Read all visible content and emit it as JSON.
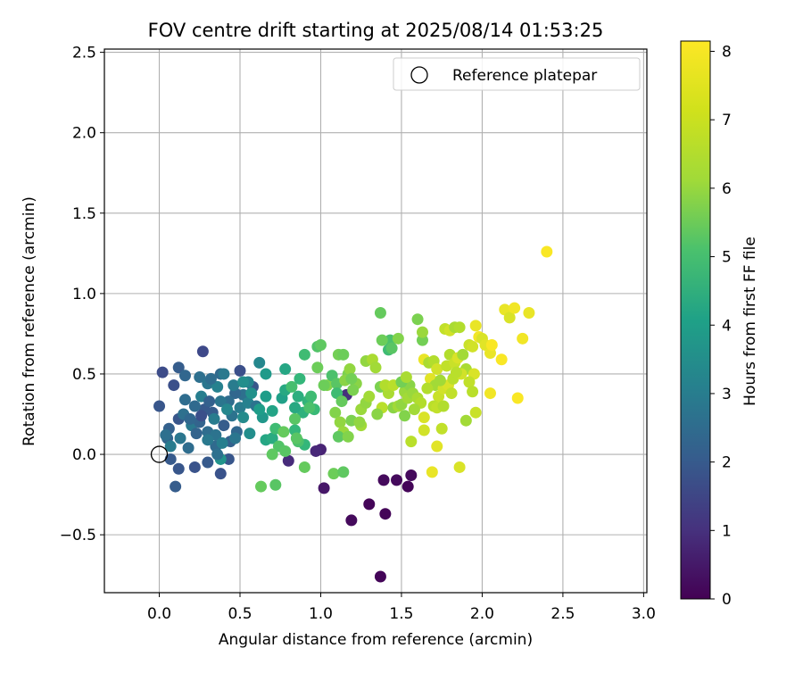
{
  "chart_data": {
    "type": "scatter",
    "title": "FOV centre drift starting at 2025/08/14 01:53:25",
    "xlabel": "Angular distance from reference (arcmin)",
    "ylabel": "Rotation from reference (arcmin)",
    "xlim": [
      -0.34,
      3.02
    ],
    "ylim": [
      -0.86,
      2.52
    ],
    "xticks": [
      0.0,
      0.5,
      1.0,
      1.5,
      2.0,
      2.5,
      3.0
    ],
    "xtick_labels": [
      "0.0",
      "0.5",
      "1.0",
      "1.5",
      "2.0",
      "2.5",
      "3.0"
    ],
    "yticks": [
      -0.5,
      0.0,
      0.5,
      1.0,
      1.5,
      2.0,
      2.5
    ],
    "ytick_labels": [
      "−0.5",
      "0.0",
      "0.5",
      "1.0",
      "1.5",
      "2.0",
      "2.5"
    ],
    "grid": true,
    "colormap": "viridis",
    "colorbar": {
      "label": "Hours from first FF file",
      "range": [
        0,
        8.15
      ],
      "ticks": [
        0,
        1,
        2,
        3,
        4,
        5,
        6,
        7,
        8
      ],
      "tick_labels": [
        "0",
        "1",
        "2",
        "3",
        "4",
        "5",
        "6",
        "7",
        "8"
      ]
    },
    "legend": {
      "position": "top-right",
      "label": "Reference platepar"
    },
    "reference_point": {
      "x": 0.0,
      "y": 0.0
    },
    "points": [
      {
        "x": 1.37,
        "y": -0.76,
        "c": 0.1
      },
      {
        "x": 1.4,
        "y": -0.37,
        "c": 0.1
      },
      {
        "x": 1.19,
        "y": -0.41,
        "c": 0.2
      },
      {
        "x": 1.3,
        "y": -0.31,
        "c": 0.1
      },
      {
        "x": 1.47,
        "y": -0.16,
        "c": 0.2
      },
      {
        "x": 1.56,
        "y": -0.13,
        "c": 0.2
      },
      {
        "x": 1.54,
        "y": -0.2,
        "c": 0.1
      },
      {
        "x": 1.39,
        "y": -0.16,
        "c": 0.2
      },
      {
        "x": 1.02,
        "y": -0.21,
        "c": 0.5
      },
      {
        "x": 1.0,
        "y": 0.03,
        "c": 0.8
      },
      {
        "x": 0.97,
        "y": 0.02,
        "c": 0.9
      },
      {
        "x": 0.8,
        "y": -0.04,
        "c": 1.0
      },
      {
        "x": 1.16,
        "y": 0.37,
        "c": 1.1
      },
      {
        "x": 0.02,
        "y": 0.51,
        "c": 1.9
      },
      {
        "x": 0.0,
        "y": 0.3,
        "c": 2.2
      },
      {
        "x": 0.06,
        "y": 0.16,
        "c": 2.5
      },
      {
        "x": 0.05,
        "y": 0.1,
        "c": 2.6
      },
      {
        "x": 0.1,
        "y": -0.2,
        "c": 2.4
      },
      {
        "x": 0.07,
        "y": -0.03,
        "c": 2.3
      },
      {
        "x": 0.12,
        "y": -0.09,
        "c": 2.2
      },
      {
        "x": 0.22,
        "y": -0.08,
        "c": 2.1
      },
      {
        "x": 0.3,
        "y": -0.05,
        "c": 2.3
      },
      {
        "x": 0.38,
        "y": -0.12,
        "c": 2.1
      },
      {
        "x": 0.43,
        "y": -0.03,
        "c": 2.2
      },
      {
        "x": 0.09,
        "y": 0.43,
        "c": 2.0
      },
      {
        "x": 0.12,
        "y": 0.54,
        "c": 2.4
      },
      {
        "x": 0.16,
        "y": 0.49,
        "c": 2.7
      },
      {
        "x": 0.27,
        "y": 0.64,
        "c": 1.8
      },
      {
        "x": 0.25,
        "y": 0.48,
        "c": 3.0
      },
      {
        "x": 0.3,
        "y": 0.44,
        "c": 3.2
      },
      {
        "x": 0.38,
        "y": 0.5,
        "c": 2.8
      },
      {
        "x": 0.4,
        "y": 0.5,
        "c": 3.3
      },
      {
        "x": 0.5,
        "y": 0.52,
        "c": 2.0
      },
      {
        "x": 0.58,
        "y": 0.42,
        "c": 2.2
      },
      {
        "x": 0.62,
        "y": 0.57,
        "c": 3.8
      },
      {
        "x": 0.66,
        "y": 0.5,
        "c": 4.4
      },
      {
        "x": 0.55,
        "y": 0.45,
        "c": 3.7
      },
      {
        "x": 0.52,
        "y": 0.37,
        "c": 3.0
      },
      {
        "x": 0.47,
        "y": 0.38,
        "c": 2.7
      },
      {
        "x": 0.43,
        "y": 0.33,
        "c": 2.9
      },
      {
        "x": 0.38,
        "y": 0.33,
        "c": 3.2
      },
      {
        "x": 0.33,
        "y": 0.26,
        "c": 2.4
      },
      {
        "x": 0.28,
        "y": 0.28,
        "c": 2.3
      },
      {
        "x": 0.22,
        "y": 0.3,
        "c": 2.8
      },
      {
        "x": 0.16,
        "y": 0.34,
        "c": 2.9
      },
      {
        "x": 0.12,
        "y": 0.22,
        "c": 2.2
      },
      {
        "x": 0.15,
        "y": 0.25,
        "c": 3.0
      },
      {
        "x": 0.2,
        "y": 0.18,
        "c": 3.3
      },
      {
        "x": 0.25,
        "y": 0.2,
        "c": 2.6
      },
      {
        "x": 0.3,
        "y": 0.14,
        "c": 2.9
      },
      {
        "x": 0.35,
        "y": 0.12,
        "c": 3.1
      },
      {
        "x": 0.4,
        "y": 0.18,
        "c": 2.4
      },
      {
        "x": 0.45,
        "y": 0.24,
        "c": 3.1
      },
      {
        "x": 0.5,
        "y": 0.29,
        "c": 3.4
      },
      {
        "x": 0.55,
        "y": 0.32,
        "c": 3.6
      },
      {
        "x": 0.6,
        "y": 0.3,
        "c": 3.1
      },
      {
        "x": 0.48,
        "y": 0.14,
        "c": 2.7
      },
      {
        "x": 0.44,
        "y": 0.08,
        "c": 2.5
      },
      {
        "x": 0.35,
        "y": 0.05,
        "c": 2.8
      },
      {
        "x": 0.3,
        "y": 0.09,
        "c": 3.3
      },
      {
        "x": 0.23,
        "y": 0.13,
        "c": 2.6
      },
      {
        "x": 0.18,
        "y": 0.04,
        "c": 2.9
      },
      {
        "x": 0.13,
        "y": 0.1,
        "c": 3.2
      },
      {
        "x": 0.07,
        "y": 0.05,
        "c": 3.4
      },
      {
        "x": 0.04,
        "y": 0.12,
        "c": 3.0
      },
      {
        "x": 0.26,
        "y": 0.36,
        "c": 3.5
      },
      {
        "x": 0.36,
        "y": 0.42,
        "c": 3.6
      },
      {
        "x": 0.42,
        "y": 0.28,
        "c": 3.8
      },
      {
        "x": 0.52,
        "y": 0.23,
        "c": 3.9
      },
      {
        "x": 0.56,
        "y": 0.13,
        "c": 4.0
      },
      {
        "x": 0.38,
        "y": -0.03,
        "c": 4.2
      },
      {
        "x": 0.64,
        "y": 0.23,
        "c": 4.3
      },
      {
        "x": 0.66,
        "y": 0.36,
        "c": 4.5
      },
      {
        "x": 0.7,
        "y": 0.27,
        "c": 4.7
      },
      {
        "x": 0.66,
        "y": 0.09,
        "c": 4.8
      },
      {
        "x": 0.7,
        "y": 0.1,
        "c": 5.0
      },
      {
        "x": 0.76,
        "y": 0.35,
        "c": 4.6
      },
      {
        "x": 0.78,
        "y": 0.4,
        "c": 4.9
      },
      {
        "x": 0.86,
        "y": 0.36,
        "c": 5.1
      },
      {
        "x": 0.78,
        "y": 0.53,
        "c": 4.8
      },
      {
        "x": 0.92,
        "y": 0.33,
        "c": 5.3
      },
      {
        "x": 0.89,
        "y": 0.26,
        "c": 5.2
      },
      {
        "x": 0.96,
        "y": 0.28,
        "c": 5.5
      },
      {
        "x": 0.9,
        "y": 0.06,
        "c": 5.4
      },
      {
        "x": 0.72,
        "y": 0.16,
        "c": 5.6
      },
      {
        "x": 0.84,
        "y": 0.15,
        "c": 5.4
      },
      {
        "x": 0.86,
        "y": 0.08,
        "c": 5.8
      },
      {
        "x": 0.74,
        "y": 0.05,
        "c": 5.9
      },
      {
        "x": 0.78,
        "y": 0.02,
        "c": 6.0
      },
      {
        "x": 0.7,
        "y": 0.0,
        "c": 6.1
      },
      {
        "x": 0.63,
        "y": -0.2,
        "c": 6.2
      },
      {
        "x": 0.72,
        "y": -0.19,
        "c": 6.0
      },
      {
        "x": 0.9,
        "y": -0.08,
        "c": 6.2
      },
      {
        "x": 1.08,
        "y": -0.12,
        "c": 6.3
      },
      {
        "x": 1.14,
        "y": -0.11,
        "c": 6.1
      },
      {
        "x": 0.94,
        "y": 0.36,
        "c": 5.6
      },
      {
        "x": 0.9,
        "y": 0.62,
        "c": 5.6
      },
      {
        "x": 0.98,
        "y": 0.67,
        "c": 5.9
      },
      {
        "x": 1.0,
        "y": 0.68,
        "c": 6.1
      },
      {
        "x": 0.98,
        "y": 0.54,
        "c": 6.3
      },
      {
        "x": 1.04,
        "y": 0.43,
        "c": 6.6
      },
      {
        "x": 1.07,
        "y": 0.49,
        "c": 5.8
      },
      {
        "x": 1.1,
        "y": 0.44,
        "c": 6.0
      },
      {
        "x": 1.11,
        "y": 0.62,
        "c": 6.4
      },
      {
        "x": 1.14,
        "y": 0.62,
        "c": 6.3
      },
      {
        "x": 1.17,
        "y": 0.5,
        "c": 6.5
      },
      {
        "x": 1.18,
        "y": 0.53,
        "c": 6.8
      },
      {
        "x": 1.15,
        "y": 0.46,
        "c": 6.7
      },
      {
        "x": 1.1,
        "y": 0.38,
        "c": 5.6
      },
      {
        "x": 1.13,
        "y": 0.33,
        "c": 6.2
      },
      {
        "x": 1.09,
        "y": 0.26,
        "c": 6.6
      },
      {
        "x": 1.12,
        "y": 0.2,
        "c": 6.8
      },
      {
        "x": 1.14,
        "y": 0.14,
        "c": 6.9
      },
      {
        "x": 1.11,
        "y": 0.11,
        "c": 6.1
      },
      {
        "x": 1.19,
        "y": 0.21,
        "c": 6.5
      },
      {
        "x": 1.22,
        "y": 0.44,
        "c": 6.7
      },
      {
        "x": 1.25,
        "y": 0.28,
        "c": 6.9
      },
      {
        "x": 1.25,
        "y": 0.18,
        "c": 7.0
      },
      {
        "x": 1.28,
        "y": 0.32,
        "c": 6.8
      },
      {
        "x": 1.3,
        "y": 0.36,
        "c": 7.0
      },
      {
        "x": 1.28,
        "y": 0.58,
        "c": 6.8
      },
      {
        "x": 1.32,
        "y": 0.59,
        "c": 7.1
      },
      {
        "x": 1.34,
        "y": 0.54,
        "c": 7.0
      },
      {
        "x": 1.37,
        "y": 0.42,
        "c": 6.5
      },
      {
        "x": 1.42,
        "y": 0.38,
        "c": 7.1
      },
      {
        "x": 1.4,
        "y": 0.43,
        "c": 7.2
      },
      {
        "x": 1.45,
        "y": 0.43,
        "c": 7.3
      },
      {
        "x": 1.38,
        "y": 0.29,
        "c": 7.3
      },
      {
        "x": 1.45,
        "y": 0.29,
        "c": 6.7
      },
      {
        "x": 1.48,
        "y": 0.3,
        "c": 7.0
      },
      {
        "x": 1.5,
        "y": 0.31,
        "c": 6.8
      },
      {
        "x": 1.52,
        "y": 0.39,
        "c": 6.9
      },
      {
        "x": 1.54,
        "y": 0.35,
        "c": 7.0
      },
      {
        "x": 1.55,
        "y": 0.43,
        "c": 6.7
      },
      {
        "x": 1.57,
        "y": 0.38,
        "c": 6.9
      },
      {
        "x": 1.6,
        "y": 0.35,
        "c": 7.1
      },
      {
        "x": 1.62,
        "y": 0.32,
        "c": 7.2
      },
      {
        "x": 1.6,
        "y": 0.84,
        "c": 6.5
      },
      {
        "x": 1.63,
        "y": 0.71,
        "c": 6.4
      },
      {
        "x": 1.63,
        "y": 0.76,
        "c": 6.9
      },
      {
        "x": 1.37,
        "y": 0.88,
        "c": 6.2
      },
      {
        "x": 1.43,
        "y": 0.71,
        "c": 5.8
      },
      {
        "x": 1.38,
        "y": 0.71,
        "c": 6.3
      },
      {
        "x": 1.48,
        "y": 0.72,
        "c": 6.6
      },
      {
        "x": 1.42,
        "y": 0.65,
        "c": 5.6
      },
      {
        "x": 1.44,
        "y": 0.66,
        "c": 6.0
      },
      {
        "x": 1.5,
        "y": 0.45,
        "c": 6.4
      },
      {
        "x": 1.64,
        "y": 0.59,
        "c": 7.9
      },
      {
        "x": 1.67,
        "y": 0.57,
        "c": 7.1
      },
      {
        "x": 1.7,
        "y": 0.58,
        "c": 7.2
      },
      {
        "x": 1.72,
        "y": 0.53,
        "c": 7.6
      },
      {
        "x": 1.68,
        "y": 0.47,
        "c": 7.8
      },
      {
        "x": 1.71,
        "y": 0.43,
        "c": 7.0
      },
      {
        "x": 1.73,
        "y": 0.36,
        "c": 7.5
      },
      {
        "x": 1.7,
        "y": 0.3,
        "c": 7.3
      },
      {
        "x": 1.72,
        "y": 0.29,
        "c": 7.4
      },
      {
        "x": 1.76,
        "y": 0.41,
        "c": 7.6
      },
      {
        "x": 1.79,
        "y": 0.43,
        "c": 7.7
      },
      {
        "x": 1.82,
        "y": 0.47,
        "c": 7.3
      },
      {
        "x": 1.78,
        "y": 0.55,
        "c": 7.4
      },
      {
        "x": 1.8,
        "y": 0.62,
        "c": 7.2
      },
      {
        "x": 1.83,
        "y": 0.57,
        "c": 7.5
      },
      {
        "x": 1.85,
        "y": 0.6,
        "c": 7.7
      },
      {
        "x": 1.88,
        "y": 0.62,
        "c": 7.0
      },
      {
        "x": 1.9,
        "y": 0.53,
        "c": 7.1
      },
      {
        "x": 1.87,
        "y": 0.5,
        "c": 7.6
      },
      {
        "x": 1.92,
        "y": 0.68,
        "c": 7.5
      },
      {
        "x": 1.77,
        "y": 0.78,
        "c": 7.4
      },
      {
        "x": 1.8,
        "y": 0.77,
        "c": 7.6
      },
      {
        "x": 1.83,
        "y": 0.79,
        "c": 7.1
      },
      {
        "x": 1.86,
        "y": 0.79,
        "c": 7.2
      },
      {
        "x": 1.96,
        "y": 0.8,
        "c": 7.9
      },
      {
        "x": 1.98,
        "y": 0.73,
        "c": 8.0
      },
      {
        "x": 2.0,
        "y": 0.72,
        "c": 7.7
      },
      {
        "x": 2.02,
        "y": 0.68,
        "c": 7.8
      },
      {
        "x": 2.05,
        "y": 0.63,
        "c": 7.9
      },
      {
        "x": 2.06,
        "y": 0.68,
        "c": 8.1
      },
      {
        "x": 1.94,
        "y": 0.67,
        "c": 7.6
      },
      {
        "x": 1.95,
        "y": 0.5,
        "c": 7.7
      },
      {
        "x": 1.92,
        "y": 0.45,
        "c": 7.4
      },
      {
        "x": 1.94,
        "y": 0.39,
        "c": 7.3
      },
      {
        "x": 1.96,
        "y": 0.26,
        "c": 7.5
      },
      {
        "x": 1.9,
        "y": 0.21,
        "c": 7.0
      },
      {
        "x": 1.76,
        "y": 0.3,
        "c": 7.2
      },
      {
        "x": 1.75,
        "y": 0.16,
        "c": 7.4
      },
      {
        "x": 1.72,
        "y": 0.05,
        "c": 7.8
      },
      {
        "x": 1.64,
        "y": 0.15,
        "c": 7.6
      },
      {
        "x": 1.64,
        "y": 0.23,
        "c": 7.7
      },
      {
        "x": 1.56,
        "y": 0.08,
        "c": 7.3
      },
      {
        "x": 1.69,
        "y": -0.11,
        "c": 7.9
      },
      {
        "x": 1.86,
        "y": -0.08,
        "c": 7.7
      },
      {
        "x": 2.05,
        "y": 0.38,
        "c": 8.0
      },
      {
        "x": 2.12,
        "y": 0.59,
        "c": 8.1
      },
      {
        "x": 2.14,
        "y": 0.9,
        "c": 7.9
      },
      {
        "x": 2.17,
        "y": 0.85,
        "c": 7.7
      },
      {
        "x": 2.2,
        "y": 0.91,
        "c": 8.0
      },
      {
        "x": 2.22,
        "y": 0.35,
        "c": 8.1
      },
      {
        "x": 2.25,
        "y": 0.72,
        "c": 8.0
      },
      {
        "x": 2.29,
        "y": 0.88,
        "c": 7.9
      },
      {
        "x": 2.4,
        "y": 1.26,
        "c": 8.1
      },
      {
        "x": 0.26,
        "y": 0.24,
        "c": 2.0
      },
      {
        "x": 0.31,
        "y": 0.33,
        "c": 2.5
      },
      {
        "x": 0.19,
        "y": 0.22,
        "c": 2.7
      },
      {
        "x": 0.34,
        "y": 0.22,
        "c": 3.4
      },
      {
        "x": 0.47,
        "y": 0.1,
        "c": 3.2
      },
      {
        "x": 0.39,
        "y": 0.07,
        "c": 3.5
      },
      {
        "x": 0.36,
        "y": 0.0,
        "c": 3.0
      },
      {
        "x": 0.32,
        "y": 0.47,
        "c": 2.9
      },
      {
        "x": 0.46,
        "y": 0.43,
        "c": 3.4
      },
      {
        "x": 0.52,
        "y": 0.45,
        "c": 4.0
      },
      {
        "x": 0.57,
        "y": 0.38,
        "c": 4.1
      },
      {
        "x": 0.62,
        "y": 0.28,
        "c": 4.5
      },
      {
        "x": 0.84,
        "y": 0.29,
        "c": 4.9
      },
      {
        "x": 0.82,
        "y": 0.42,
        "c": 5.7
      },
      {
        "x": 0.87,
        "y": 0.47,
        "c": 5.4
      },
      {
        "x": 0.93,
        "y": 0.29,
        "c": 5.8
      },
      {
        "x": 0.84,
        "y": 0.22,
        "c": 6.0
      },
      {
        "x": 0.77,
        "y": 0.14,
        "c": 6.2
      },
      {
        "x": 0.85,
        "y": 0.1,
        "c": 6.0
      },
      {
        "x": 1.02,
        "y": 0.43,
        "c": 6.3
      },
      {
        "x": 1.19,
        "y": 0.47,
        "c": 6.4
      },
      {
        "x": 1.2,
        "y": 0.4,
        "c": 6.5
      },
      {
        "x": 1.24,
        "y": 0.2,
        "c": 6.8
      },
      {
        "x": 1.17,
        "y": 0.11,
        "c": 6.6
      },
      {
        "x": 1.35,
        "y": 0.25,
        "c": 6.7
      },
      {
        "x": 1.52,
        "y": 0.24,
        "c": 6.6
      },
      {
        "x": 1.53,
        "y": 0.48,
        "c": 7.1
      },
      {
        "x": 1.58,
        "y": 0.28,
        "c": 7.0
      },
      {
        "x": 1.66,
        "y": 0.41,
        "c": 7.2
      },
      {
        "x": 1.74,
        "y": 0.46,
        "c": 7.0
      },
      {
        "x": 1.81,
        "y": 0.38,
        "c": 7.4
      },
      {
        "x": 1.84,
        "y": 0.51,
        "c": 7.3
      }
    ]
  }
}
